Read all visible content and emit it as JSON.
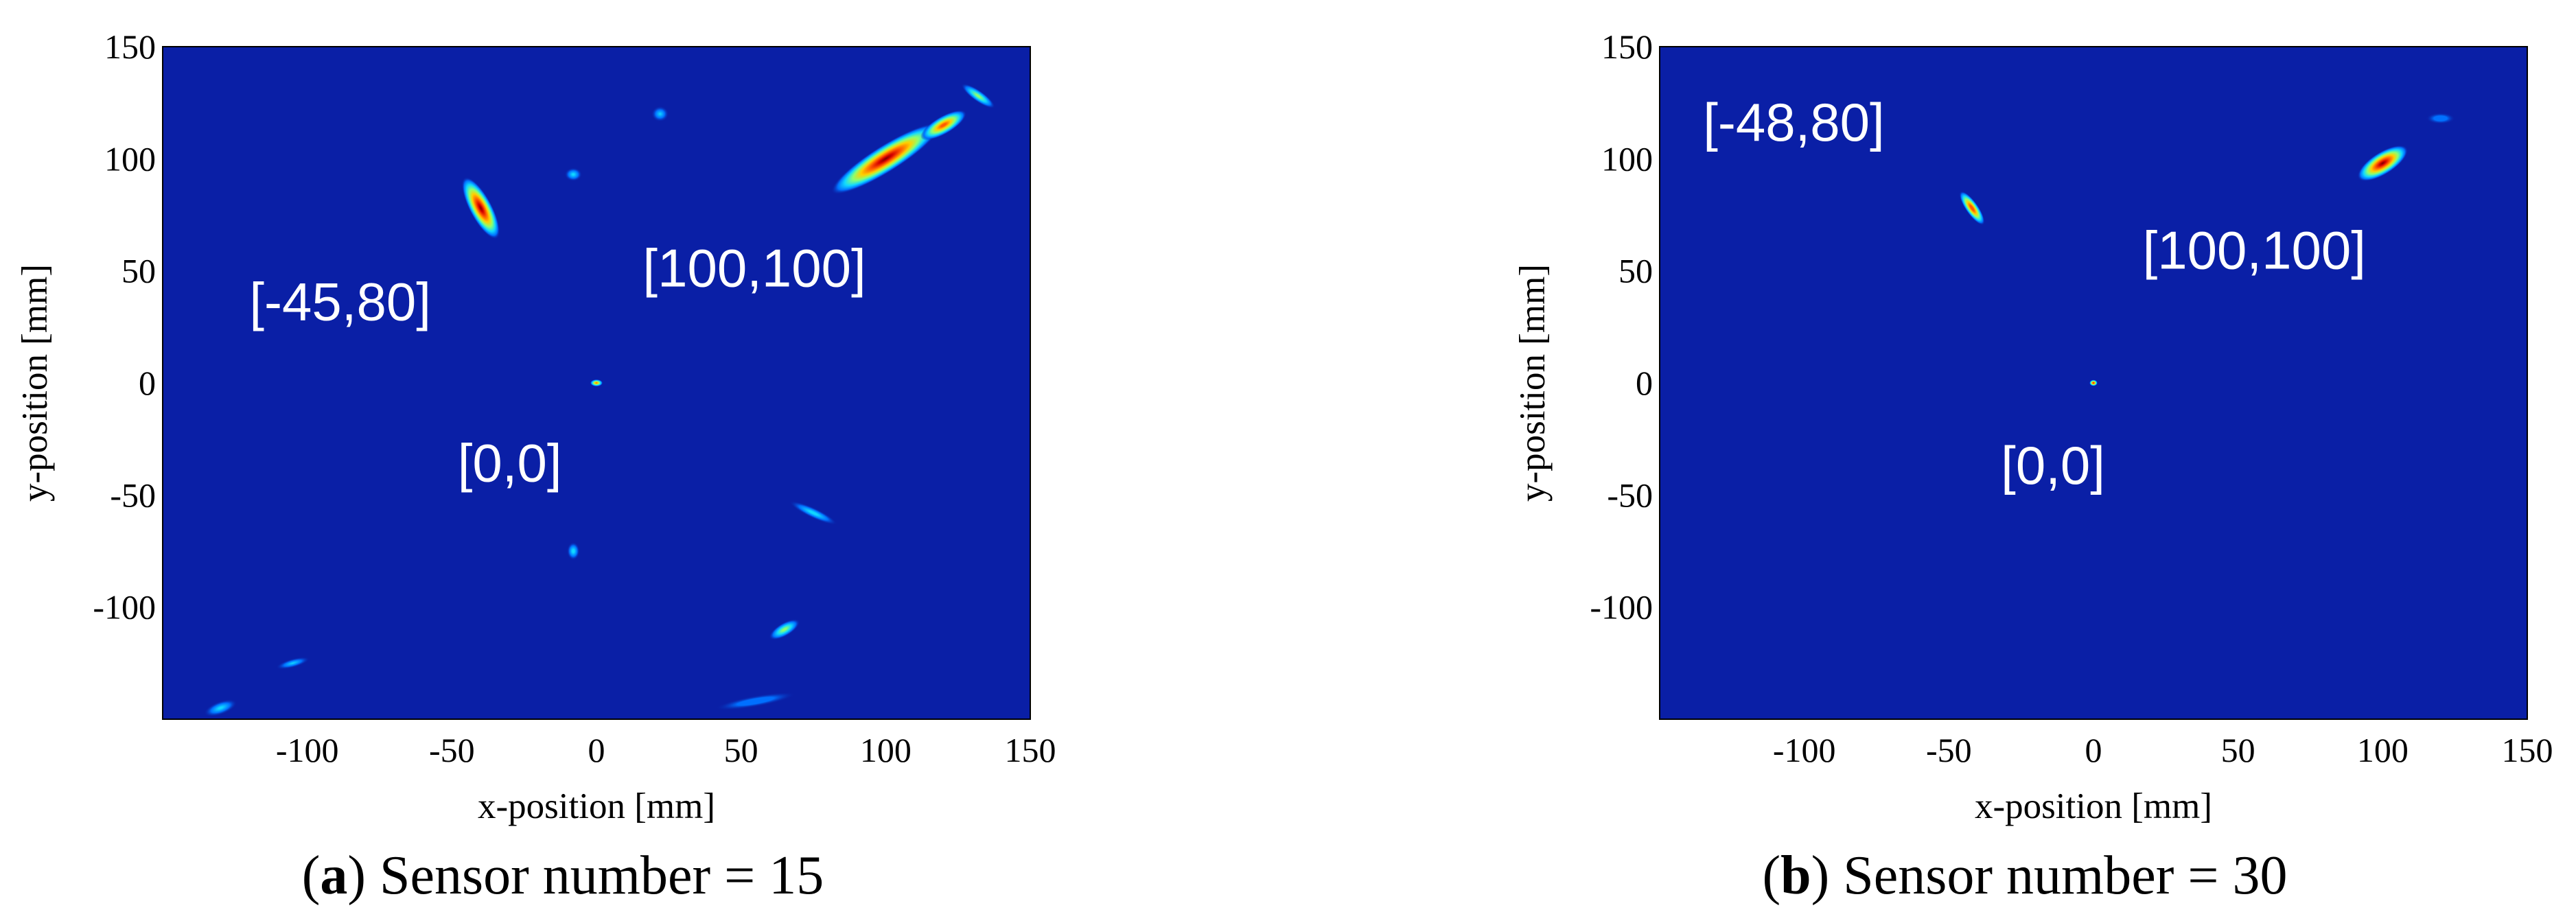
{
  "chart_data": [
    {
      "type": "heatmap",
      "caption": {
        "open": "(",
        "letter": "a",
        "close": ")",
        "text": " Sensor number = 15"
      },
      "xlabel": "x-position [mm]",
      "ylabel": "y-position [mm]",
      "xlim": [
        -150,
        150
      ],
      "ylim": [
        -150,
        150
      ],
      "xticks": [
        -100,
        -50,
        0,
        50,
        100,
        150
      ],
      "yticks": [
        150,
        100,
        50,
        0,
        -50,
        -100
      ],
      "grid": false,
      "background_color": "#0a1fa6",
      "annotations": [
        {
          "text": "[-45,80]",
          "x": -120,
          "y": 28
        },
        {
          "text": "[100,100]",
          "x": 16,
          "y": 43
        },
        {
          "text": "[0,0]",
          "x": -48,
          "y": -44
        }
      ],
      "blobs": [
        {
          "x": 100,
          "y": 100,
          "rx": 22,
          "ry": 6,
          "angle": 32,
          "peak": 1.0
        },
        {
          "x": 120,
          "y": 115,
          "rx": 9,
          "ry": 4,
          "angle": 30,
          "peak": 0.8
        },
        {
          "x": 132,
          "y": 128,
          "rx": 7,
          "ry": 2.5,
          "angle": -35,
          "peak": 0.45
        },
        {
          "x": -40,
          "y": 78,
          "rx": 12,
          "ry": 5,
          "angle": -62,
          "peak": 1.0
        },
        {
          "x": 0,
          "y": 0,
          "rx": 2.2,
          "ry": 1.6,
          "angle": 0,
          "peak": 0.72
        },
        {
          "x": 65,
          "y": -110,
          "rx": 6,
          "ry": 3,
          "angle": 30,
          "peak": 0.45
        },
        {
          "x": 75,
          "y": -58,
          "rx": 9,
          "ry": 2.3,
          "angle": -25,
          "peak": 0.3
        },
        {
          "x": -8,
          "y": -75,
          "rx": 2.2,
          "ry": 4,
          "angle": 0,
          "peak": 0.3
        },
        {
          "x": -8,
          "y": 93,
          "rx": 3,
          "ry": 3,
          "angle": 0,
          "peak": 0.28
        },
        {
          "x": 22,
          "y": 120,
          "rx": 3,
          "ry": 3.5,
          "angle": 0,
          "peak": 0.25
        },
        {
          "x": -130,
          "y": -145,
          "rx": 6,
          "ry": 3,
          "angle": 20,
          "peak": 0.28
        },
        {
          "x": -105,
          "y": -125,
          "rx": 6,
          "ry": 2,
          "angle": 15,
          "peak": 0.25
        },
        {
          "x": 55,
          "y": -142,
          "rx": 14,
          "ry": 2.5,
          "angle": 10,
          "peak": 0.22
        }
      ]
    },
    {
      "type": "heatmap",
      "caption": {
        "open": "(",
        "letter": "b",
        "close": ")",
        "text": " Sensor number = 30"
      },
      "xlabel": "x-position [mm]",
      "ylabel": "y-position [mm]",
      "xlim": [
        -150,
        150
      ],
      "ylim": [
        -150,
        150
      ],
      "xticks": [
        -100,
        -50,
        0,
        50,
        100,
        150
      ],
      "yticks": [
        150,
        100,
        50,
        0,
        -50,
        -100
      ],
      "grid": false,
      "background_color": "#0a1fa6",
      "annotations": [
        {
          "text": "[-48,80]",
          "x": -135,
          "y": 108
        },
        {
          "text": "[100,100]",
          "x": 17,
          "y": 51
        },
        {
          "text": "[0,0]",
          "x": -32,
          "y": -45
        }
      ],
      "blobs": [
        {
          "x": 100,
          "y": 98,
          "rx": 10,
          "ry": 5,
          "angle": 32,
          "peak": 1.0
        },
        {
          "x": -42,
          "y": 78,
          "rx": 7,
          "ry": 2.8,
          "angle": -55,
          "peak": 0.85
        },
        {
          "x": 0,
          "y": 0,
          "rx": 1.4,
          "ry": 1.4,
          "angle": 0,
          "peak": 0.9
        },
        {
          "x": 120,
          "y": 118,
          "rx": 5,
          "ry": 2.5,
          "angle": 0,
          "peak": 0.22
        }
      ]
    }
  ]
}
